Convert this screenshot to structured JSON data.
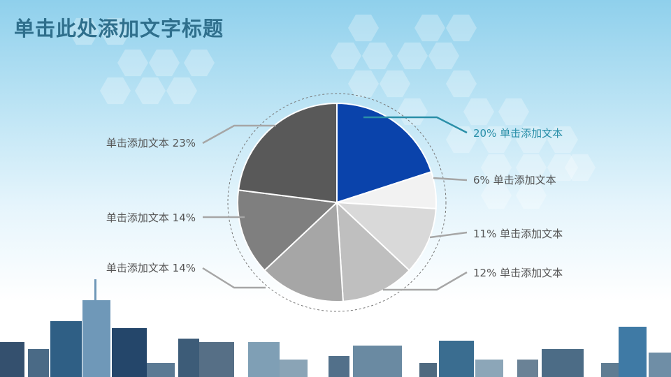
{
  "header": {
    "title": "单击此处添加文字标题"
  },
  "colors": {
    "title": "#2f6f8c",
    "highlight": "#2a8fa8"
  },
  "chart_data": {
    "type": "pie",
    "start": "top",
    "direction": "clockwise",
    "slices": [
      {
        "label": "单击添加文本",
        "value": 20,
        "color": "#0a43ab",
        "highlight": true
      },
      {
        "label": "单击添加文本",
        "value": 6,
        "color": "#f2f2f2"
      },
      {
        "label": "单击添加文本",
        "value": 11,
        "color": "#d9d9d9"
      },
      {
        "label": "单击添加文本",
        "value": 12,
        "color": "#bfbfbf"
      },
      {
        "label": "单击添加文本",
        "value": 14,
        "color": "#a6a6a6"
      },
      {
        "label": "单击添加文本",
        "value": 14,
        "color": "#7f7f7f"
      },
      {
        "label": "单击添加文本",
        "value": 23,
        "color": "#595959"
      }
    ]
  }
}
